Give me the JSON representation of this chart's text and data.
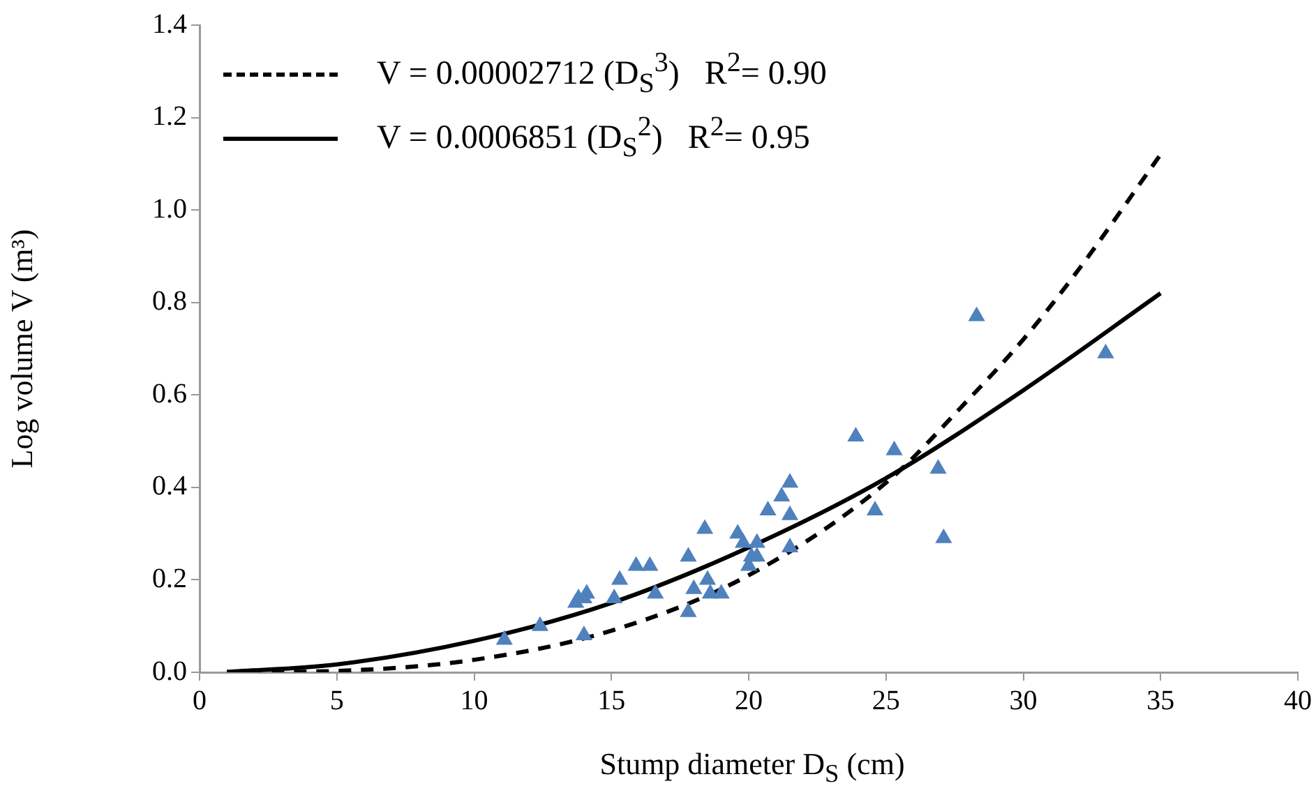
{
  "chart_data": {
    "type": "scatter",
    "xlabel": "Stump diameter D$_{S}$ (cm)",
    "ylabel": "Log volume V (m³)",
    "xlim": [
      0,
      40
    ],
    "xticks": [
      0,
      5,
      10,
      15,
      20,
      25,
      30,
      35,
      40
    ],
    "ylim": [
      0,
      1.4
    ],
    "yticks": [
      {
        "value": 0,
        "label": "0.0"
      },
      {
        "value": 0.2,
        "label": "0.2"
      },
      {
        "value": 0.4,
        "label": "0.4"
      },
      {
        "value": 0.6,
        "label": "0.6"
      },
      {
        "value": 0.8,
        "label": "0.8"
      },
      {
        "value": 1.0,
        "label": "1.0"
      },
      {
        "value": 1.2,
        "label": "1.2"
      },
      {
        "value": 1.4,
        "label": "1.4"
      }
    ],
    "grid": false,
    "legend": "top left",
    "marker": "triangle",
    "series": [
      {
        "color": "#4f81bd",
        "x": [
          11.1,
          12.4,
          13.7,
          13.8,
          14.0,
          14.1,
          14.0,
          15.1,
          15.3,
          15.9,
          16.4,
          16.6,
          17.8,
          17.8,
          18.0,
          18.4,
          18.5,
          18.6,
          19.0,
          19.6,
          19.8,
          20.0,
          20.1,
          20.3,
          20.3,
          20.7,
          21.2,
          21.5,
          21.5,
          21.5,
          23.9,
          24.6,
          25.3,
          26.9,
          27.1,
          28.3,
          33.0
        ],
        "values": [
          0.07,
          0.1,
          0.15,
          0.16,
          0.16,
          0.17,
          0.08,
          0.16,
          0.2,
          0.23,
          0.23,
          0.17,
          0.25,
          0.13,
          0.18,
          0.31,
          0.2,
          0.17,
          0.17,
          0.3,
          0.28,
          0.23,
          0.25,
          0.25,
          0.28,
          0.35,
          0.38,
          0.41,
          0.34,
          0.27,
          0.51,
          0.35,
          0.48,
          0.44,
          0.29,
          0.77,
          0.69
        ]
      },
      {
        "type": "line",
        "name": "V = 0.00002712 (D$_{S}$$^{3}$)   R$^{2}$= 0.90",
        "color": "#000000",
        "line_style": "dashed",
        "marker": "none",
        "x": [
          1,
          5,
          10,
          15,
          20,
          25,
          28,
          30,
          32,
          35
        ],
        "values": [
          0.0,
          0.003,
          0.027,
          0.09,
          0.21,
          0.41,
          0.59,
          0.72,
          0.87,
          1.12
        ]
      },
      {
        "type": "line",
        "name": "V = 0.0006851 (D$_{S}$$^{2}$)   R$^{2}$= 0.95",
        "color": "#000000",
        "line_style": "solid",
        "marker": "none",
        "x": [
          1,
          5,
          10,
          15,
          20,
          25,
          30,
          35
        ],
        "values": [
          0.001,
          0.017,
          0.068,
          0.15,
          0.27,
          0.42,
          0.61,
          0.82
        ]
      }
    ]
  }
}
